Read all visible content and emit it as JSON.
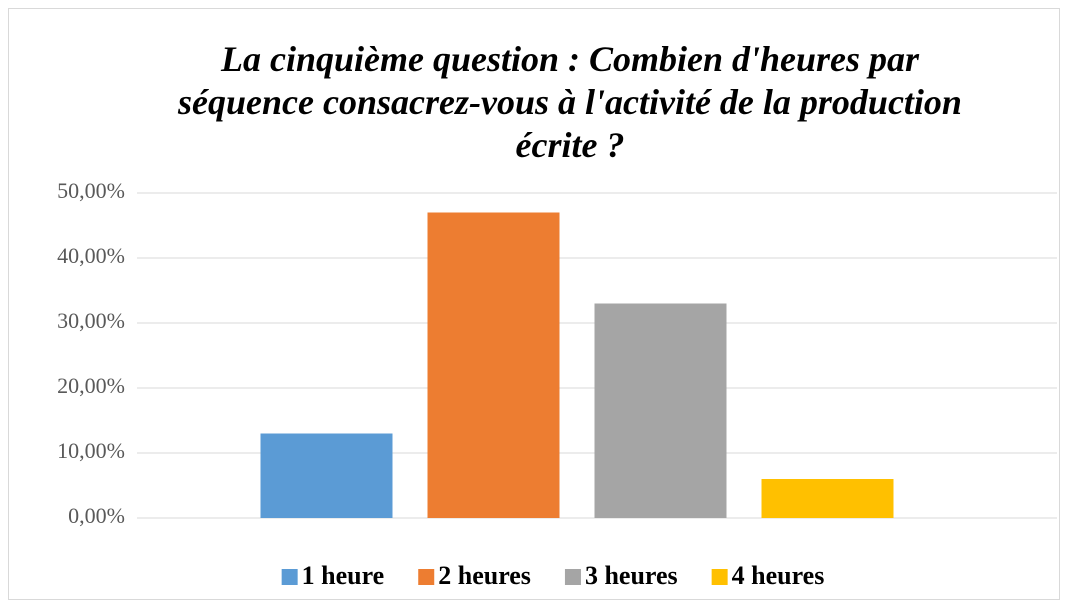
{
  "chart_data": {
    "type": "bar",
    "title": "La cinquième question : Combien d'heures par séquence consacrez-vous à l'activité de la production écrite ?",
    "categories": [
      null
    ],
    "series": [
      {
        "name": "1 heure",
        "color": "#5b9bd5",
        "values": [
          13
        ]
      },
      {
        "name": "2 heures",
        "color": "#ed7d31",
        "values": [
          47
        ]
      },
      {
        "name": "3 heures",
        "color": "#a5a5a5",
        "values": [
          33
        ]
      },
      {
        "name": "4 heures",
        "color": "#ffc000",
        "values": [
          6
        ]
      }
    ],
    "ylim": [
      0,
      50
    ],
    "yticks": [
      {
        "value": 0,
        "label": "0,00%"
      },
      {
        "value": 10,
        "label": "10,00%"
      },
      {
        "value": 20,
        "label": "20,00%"
      },
      {
        "value": 30,
        "label": "30,00%"
      },
      {
        "value": 40,
        "label": "40,00%"
      },
      {
        "value": 50,
        "label": "50,00%"
      }
    ],
    "grid": true,
    "legend": "bottom"
  }
}
